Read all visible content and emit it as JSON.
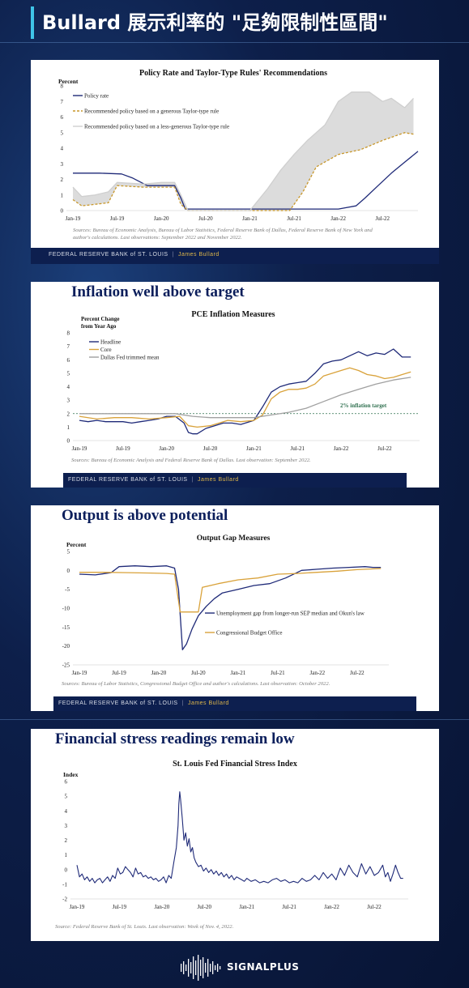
{
  "page": {
    "title": "Bullard 展示利率的 \"足夠限制性區間\"",
    "brand": "SIGNALPLUS"
  },
  "footer": {
    "fed": "FEDERAL RESERVE BANK of ST. LOUIS",
    "author": "James Bullard"
  },
  "slides": [
    {
      "slide_title": "",
      "source": "Sources: Bureau of Economic Analysis, Bureau of Labor Statistics, Federal Reserve Bank of Dallas, Federal Reserve Bank of New York and author's calculations. Last observations: September 2022 and November 2022."
    },
    {
      "slide_title": "Inflation well above target",
      "source": "Sources: Bureau of Economic Analysis and Federal Reserve Bank of Dallas. Last observation: September 2022."
    },
    {
      "slide_title": "Output is above potential",
      "source": "Sources: Bureau of Labor Statistics, Congressional Budget Office and author's calculations. Last observation: October 2022."
    },
    {
      "slide_title": "Financial stress readings remain low",
      "source": "Source: Federal Reserve Bank of St. Louis. Last observation: Week of Nov. 4, 2022."
    }
  ],
  "chart_data": [
    {
      "type": "line",
      "title": "Policy Rate and Taylor-Type Rules' Recommendations",
      "ylabel": "Percent",
      "ylim": [
        0,
        8
      ],
      "yticks": [
        0,
        1,
        2,
        3,
        4,
        5,
        6,
        7,
        8
      ],
      "xtick_labels": [
        "Jan-19",
        "Jul-19",
        "Jan-20",
        "Jul-20",
        "Jan-21",
        "Jul-21",
        "Jan-22",
        "Jul-22"
      ],
      "xrange": [
        2019.0,
        2022.9
      ],
      "legend_position": "top-left",
      "series": [
        {
          "name": "Policy rate",
          "color": "#1f2a78",
          "style": "solid",
          "x": [
            2019.0,
            2019.3,
            2019.55,
            2019.67,
            2019.84,
            2020.0,
            2020.15,
            2020.22,
            2020.27,
            2020.5,
            2021.0,
            2021.5,
            2022.0,
            2022.2,
            2022.3,
            2022.45,
            2022.6,
            2022.75,
            2022.9
          ],
          "y": [
            2.4,
            2.4,
            2.35,
            2.1,
            1.6,
            1.6,
            1.6,
            0.8,
            0.1,
            0.1,
            0.1,
            0.1,
            0.1,
            0.3,
            0.8,
            1.6,
            2.4,
            3.1,
            3.8
          ]
        },
        {
          "name": "Recommended policy based on a generous Taylor-type rule",
          "color": "#c8972a",
          "style": "dashed",
          "x": [
            2019.0,
            2019.1,
            2019.25,
            2019.4,
            2019.5,
            2019.8,
            2020.0,
            2020.15,
            2020.22,
            2020.3,
            2021.0,
            2021.25,
            2021.45,
            2021.6,
            2021.75,
            2022.0,
            2022.25,
            2022.5,
            2022.75,
            2022.85
          ],
          "y": [
            0.7,
            0.3,
            0.4,
            0.5,
            1.6,
            1.5,
            1.5,
            1.5,
            0.4,
            0.0,
            0.0,
            0.0,
            0.0,
            1.2,
            2.8,
            3.6,
            3.9,
            4.5,
            5.0,
            4.9
          ]
        },
        {
          "name": "Recommended policy based on a less-generous Taylor-type rule",
          "color": "#cfcfcf",
          "style": "solid",
          "x": [
            2019.0,
            2019.1,
            2019.25,
            2019.4,
            2019.5,
            2019.8,
            2020.0,
            2020.15,
            2020.22,
            2020.3,
            2021.0,
            2021.2,
            2021.35,
            2021.5,
            2021.65,
            2021.85,
            2022.0,
            2022.15,
            2022.35,
            2022.5,
            2022.6,
            2022.75,
            2022.85
          ],
          "y": [
            1.5,
            0.9,
            1.0,
            1.2,
            1.8,
            1.7,
            1.8,
            1.8,
            1.0,
            0.0,
            0.0,
            1.4,
            2.6,
            3.6,
            4.5,
            5.5,
            7.0,
            7.6,
            7.6,
            7.0,
            7.2,
            6.6,
            7.2
          ]
        }
      ]
    },
    {
      "type": "line",
      "title": "PCE Inflation Measures",
      "ylabel": "Percent Change from Year Ago",
      "ylim": [
        0,
        8
      ],
      "yticks": [
        0,
        1,
        2,
        3,
        4,
        5,
        6,
        7,
        8
      ],
      "xtick_labels": [
        "Jan-19",
        "Jul-19",
        "Jan-20",
        "Jul-20",
        "Jan-21",
        "Jul-21",
        "Jan-22",
        "Jul-22"
      ],
      "xrange": [
        2019.0,
        2022.9
      ],
      "legend_position": "top-left",
      "annotation": "2% inflation target",
      "reference_line": 2,
      "series": [
        {
          "name": "Headline",
          "color": "#1f2a78",
          "x": [
            2019.0,
            2019.1,
            2019.2,
            2019.3,
            2019.4,
            2019.5,
            2019.6,
            2019.7,
            2019.8,
            2019.9,
            2020.0,
            2020.1,
            2020.2,
            2020.25,
            2020.3,
            2020.35,
            2020.45,
            2020.55,
            2020.65,
            2020.75,
            2020.85,
            2021.0,
            2021.1,
            2021.2,
            2021.3,
            2021.4,
            2021.5,
            2021.6,
            2021.7,
            2021.8,
            2021.9,
            2022.0,
            2022.1,
            2022.2,
            2022.3,
            2022.4,
            2022.5,
            2022.6,
            2022.7,
            2022.8
          ],
          "y": [
            1.5,
            1.4,
            1.5,
            1.4,
            1.4,
            1.4,
            1.3,
            1.4,
            1.5,
            1.6,
            1.8,
            1.8,
            1.3,
            0.6,
            0.5,
            0.5,
            0.9,
            1.1,
            1.3,
            1.3,
            1.2,
            1.5,
            2.5,
            3.6,
            4.0,
            4.2,
            4.3,
            4.4,
            5.0,
            5.7,
            5.9,
            6.0,
            6.3,
            6.6,
            6.3,
            6.5,
            6.4,
            6.8,
            6.2,
            6.2
          ]
        },
        {
          "name": "Core",
          "color": "#d9a23a",
          "x": [
            2019.0,
            2019.2,
            2019.4,
            2019.6,
            2019.8,
            2020.0,
            2020.15,
            2020.25,
            2020.35,
            2020.5,
            2020.7,
            2020.85,
            2021.0,
            2021.1,
            2021.2,
            2021.3,
            2021.4,
            2021.5,
            2021.6,
            2021.7,
            2021.8,
            2021.9,
            2022.0,
            2022.1,
            2022.2,
            2022.3,
            2022.4,
            2022.5,
            2022.6,
            2022.7,
            2022.8
          ],
          "y": [
            1.8,
            1.6,
            1.7,
            1.7,
            1.6,
            1.7,
            1.8,
            1.1,
            1.0,
            1.1,
            1.5,
            1.4,
            1.5,
            1.9,
            3.1,
            3.6,
            3.8,
            3.8,
            3.9,
            4.2,
            4.8,
            5.0,
            5.2,
            5.4,
            5.2,
            4.9,
            4.8,
            4.6,
            4.7,
            4.9,
            5.1
          ]
        },
        {
          "name": "Dallas Fed trimmed mean",
          "color": "#a0a0a0",
          "x": [
            2019.0,
            2019.3,
            2019.6,
            2019.9,
            2020.1,
            2020.3,
            2020.5,
            2020.7,
            2021.0,
            2021.2,
            2021.4,
            2021.6,
            2021.8,
            2022.0,
            2022.2,
            2022.4,
            2022.6,
            2022.8
          ],
          "y": [
            2.0,
            2.0,
            2.0,
            2.0,
            2.0,
            1.8,
            1.7,
            1.7,
            1.7,
            1.9,
            2.1,
            2.4,
            2.9,
            3.4,
            3.8,
            4.2,
            4.5,
            4.7
          ]
        }
      ]
    },
    {
      "type": "line",
      "title": "Output Gap Measures",
      "ylabel": "Percent",
      "ylim": [
        -25,
        5
      ],
      "yticks": [
        -25,
        -20,
        -15,
        -10,
        -5,
        0,
        5
      ],
      "xtick_labels": [
        "Jan-19",
        "Jul-19",
        "Jan-20",
        "Jul-20",
        "Jan-21",
        "Jul-21",
        "Jan-22",
        "Jul-22"
      ],
      "xrange": [
        2019.0,
        2022.9
      ],
      "legend_position": "bottom-right",
      "series": [
        {
          "name": "Unemployment gap from longer-run SEP median and Okun's law",
          "color": "#1f2a78",
          "x": [
            2019.0,
            2019.2,
            2019.4,
            2019.5,
            2019.7,
            2019.9,
            2020.1,
            2020.2,
            2020.25,
            2020.3,
            2020.35,
            2020.42,
            2020.5,
            2020.6,
            2020.7,
            2020.8,
            2020.9,
            2021.0,
            2021.2,
            2021.4,
            2021.6,
            2021.8,
            2022.0,
            2022.2,
            2022.4,
            2022.6,
            2022.7,
            2022.8
          ],
          "y": [
            -1.0,
            -1.2,
            -0.6,
            1.0,
            1.2,
            1.0,
            1.2,
            0.6,
            -5.0,
            -21.0,
            -19.5,
            -15.5,
            -12.0,
            -9.5,
            -7.5,
            -6.0,
            -5.5,
            -5.0,
            -4.0,
            -3.5,
            -2.0,
            0.0,
            0.3,
            0.6,
            0.8,
            1.0,
            0.8,
            0.8
          ]
        },
        {
          "name": "Congressional Budget Office",
          "color": "#d9a23a",
          "x": [
            2019.0,
            2019.3,
            2019.6,
            2019.9,
            2020.1,
            2020.2,
            2020.27,
            2020.5,
            2020.55,
            2020.75,
            2021.0,
            2021.25,
            2021.5,
            2021.75,
            2022.0,
            2022.25,
            2022.5,
            2022.8
          ],
          "y": [
            -0.5,
            -0.5,
            -0.6,
            -0.7,
            -0.8,
            -1.0,
            -11.0,
            -11.0,
            -4.5,
            -3.5,
            -2.5,
            -2.0,
            -1.0,
            -0.8,
            -0.5,
            -0.2,
            0.2,
            0.5
          ]
        }
      ]
    },
    {
      "type": "line",
      "title": "St. Louis Fed Financial Stress Index",
      "ylabel": "Index",
      "ylim": [
        -2,
        6
      ],
      "yticks": [
        -2,
        -1,
        0,
        1,
        2,
        3,
        4,
        5,
        6
      ],
      "xtick_labels": [
        "Jan-19",
        "Jul-19",
        "Jan-20",
        "Jul-20",
        "Jan-21",
        "Jul-21",
        "Jan-22",
        "Jul-22"
      ],
      "xrange": [
        2019.0,
        2022.9
      ],
      "series": [
        {
          "name": "",
          "color": "#1f2a78",
          "x": [
            2019.0,
            2019.03,
            2019.06,
            2019.09,
            2019.12,
            2019.15,
            2019.18,
            2019.21,
            2019.24,
            2019.27,
            2019.3,
            2019.33,
            2019.36,
            2019.39,
            2019.42,
            2019.45,
            2019.48,
            2019.51,
            2019.54,
            2019.57,
            2019.6,
            2019.63,
            2019.66,
            2019.69,
            2019.72,
            2019.75,
            2019.78,
            2019.81,
            2019.84,
            2019.87,
            2019.9,
            2019.93,
            2019.96,
            2019.99,
            2020.02,
            2020.05,
            2020.08,
            2020.11,
            2020.14,
            2020.17,
            2020.19,
            2020.2,
            2020.21,
            2020.22,
            2020.24,
            2020.26,
            2020.28,
            2020.3,
            2020.32,
            2020.34,
            2020.36,
            2020.38,
            2020.4,
            2020.43,
            2020.46,
            2020.49,
            2020.52,
            2020.55,
            2020.58,
            2020.61,
            2020.64,
            2020.67,
            2020.7,
            2020.73,
            2020.76,
            2020.79,
            2020.82,
            2020.85,
            2020.88,
            2020.91,
            2020.94,
            2020.97,
            2021.0,
            2021.05,
            2021.1,
            2021.15,
            2021.2,
            2021.25,
            2021.3,
            2021.35,
            2021.4,
            2021.45,
            2021.5,
            2021.55,
            2021.6,
            2021.65,
            2021.7,
            2021.75,
            2021.8,
            2021.85,
            2021.9,
            2021.95,
            2022.0,
            2022.05,
            2022.1,
            2022.15,
            2022.2,
            2022.25,
            2022.3,
            2022.35,
            2022.4,
            2022.45,
            2022.5,
            2022.55,
            2022.6,
            2022.63,
            2022.66,
            2022.69,
            2022.72,
            2022.75,
            2022.78,
            2022.81,
            2022.84
          ],
          "y": [
            0.3,
            -0.5,
            -0.3,
            -0.7,
            -0.5,
            -0.8,
            -0.6,
            -0.9,
            -0.7,
            -0.6,
            -0.9,
            -0.7,
            -0.5,
            -0.8,
            -0.4,
            -0.6,
            0.1,
            -0.3,
            -0.2,
            0.2,
            0.0,
            -0.2,
            -0.5,
            0.1,
            -0.3,
            -0.2,
            -0.5,
            -0.4,
            -0.6,
            -0.5,
            -0.7,
            -0.6,
            -0.8,
            -0.7,
            -0.5,
            -0.9,
            -0.4,
            -0.6,
            0.5,
            1.5,
            3.0,
            4.5,
            5.3,
            4.8,
            3.5,
            2.0,
            2.5,
            1.6,
            2.1,
            1.2,
            1.5,
            0.8,
            0.5,
            0.2,
            0.3,
            -0.1,
            0.1,
            -0.2,
            0.0,
            -0.3,
            -0.1,
            -0.4,
            -0.2,
            -0.5,
            -0.3,
            -0.6,
            -0.4,
            -0.7,
            -0.5,
            -0.6,
            -0.7,
            -0.8,
            -0.6,
            -0.8,
            -0.7,
            -0.9,
            -0.8,
            -0.9,
            -0.7,
            -0.6,
            -0.8,
            -0.7,
            -0.9,
            -0.8,
            -0.9,
            -0.6,
            -0.8,
            -0.7,
            -0.4,
            -0.7,
            -0.2,
            -0.6,
            -0.3,
            -0.7,
            0.1,
            -0.4,
            0.3,
            -0.2,
            -0.5,
            0.4,
            -0.3,
            0.2,
            -0.4,
            -0.2,
            0.3,
            -0.5,
            -0.2,
            -0.8,
            -0.3,
            0.3,
            -0.2,
            -0.6,
            -0.6
          ]
        }
      ]
    }
  ]
}
